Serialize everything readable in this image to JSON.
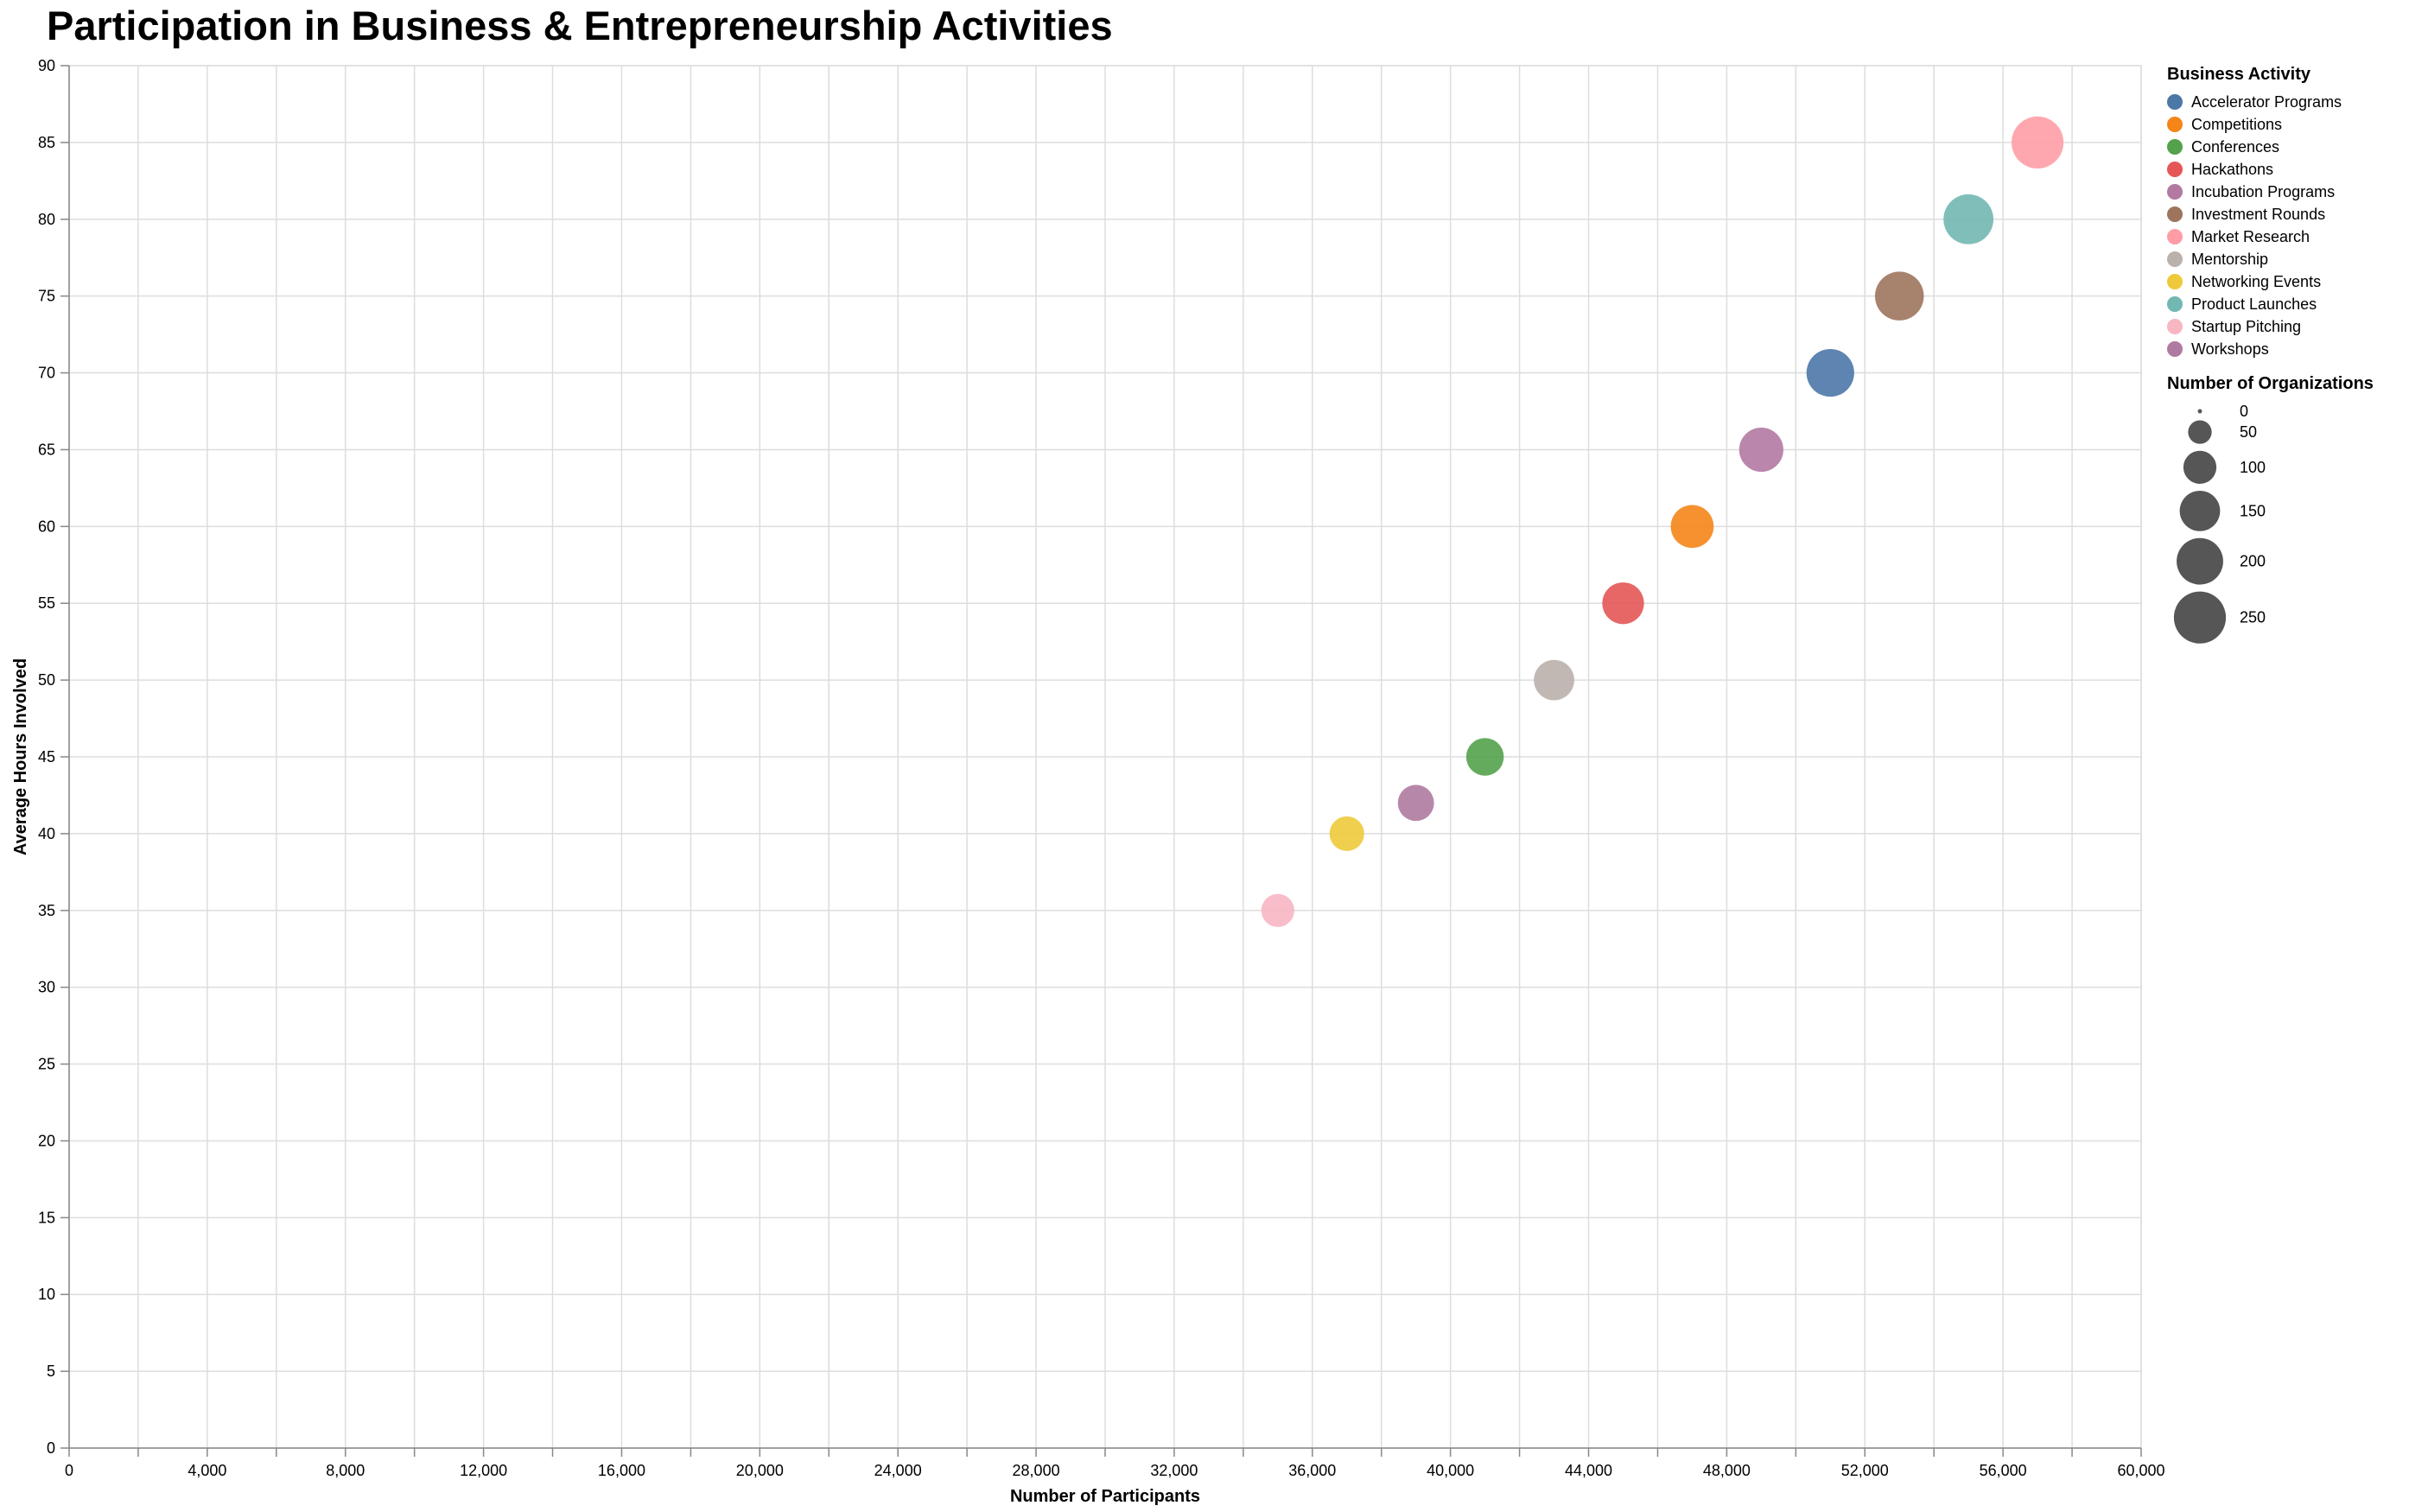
{
  "chart_data": {
    "type": "scatter",
    "title": "Participation in Business & Entrepreneurship Activities",
    "xlabel": "Number of Participants",
    "ylabel": "Average Hours Involved",
    "xlim": [
      0,
      60000
    ],
    "ylim": [
      0,
      90
    ],
    "x_ticks": [
      0,
      4000,
      8000,
      12000,
      16000,
      20000,
      24000,
      28000,
      32000,
      36000,
      40000,
      44000,
      48000,
      52000,
      56000,
      60000
    ],
    "y_ticks": [
      0,
      5,
      10,
      15,
      20,
      25,
      30,
      35,
      40,
      45,
      50,
      55,
      60,
      65,
      70,
      75,
      80,
      85,
      90
    ],
    "grid": true,
    "color_legend": {
      "title": "Business Activity",
      "placement": "right"
    },
    "size_legend": {
      "title": "Number of Organizations",
      "values": [
        0,
        50,
        100,
        150,
        200,
        250
      ]
    },
    "series": [
      {
        "name": "Accelerator Programs",
        "color": "#4c78a8",
        "x": 51000,
        "y": 70,
        "organizations": 210
      },
      {
        "name": "Competitions",
        "color": "#f58518",
        "x": 47000,
        "y": 60,
        "organizations": 170
      },
      {
        "name": "Conferences",
        "color": "#54a24b",
        "x": 41000,
        "y": 45,
        "organizations": 130
      },
      {
        "name": "Hackathons",
        "color": "#e45756",
        "x": 45000,
        "y": 55,
        "organizations": 160
      },
      {
        "name": "Incubation Programs",
        "color": "#b279a2",
        "x": 49000,
        "y": 65,
        "organizations": 180
      },
      {
        "name": "Investment Rounds",
        "color": "#9d755d",
        "x": 53000,
        "y": 75,
        "organizations": 220
      },
      {
        "name": "Market Research",
        "color": "#ff9da6",
        "x": 57000,
        "y": 85,
        "organizations": 250
      },
      {
        "name": "Mentorship",
        "color": "#bab0ac",
        "x": 43000,
        "y": 50,
        "organizations": 150
      },
      {
        "name": "Networking Events",
        "color": "#eeca3b",
        "x": 37000,
        "y": 40,
        "organizations": 110
      },
      {
        "name": "Product Launches",
        "color": "#72b7b2",
        "x": 55000,
        "y": 80,
        "organizations": 230
      },
      {
        "name": "Startup Pitching",
        "color": "#f7b6c2",
        "x": 35000,
        "y": 35,
        "organizations": 100
      },
      {
        "name": "Workshops",
        "color": "#af7aa1",
        "x": 39000,
        "y": 42,
        "organizations": 120
      }
    ]
  }
}
